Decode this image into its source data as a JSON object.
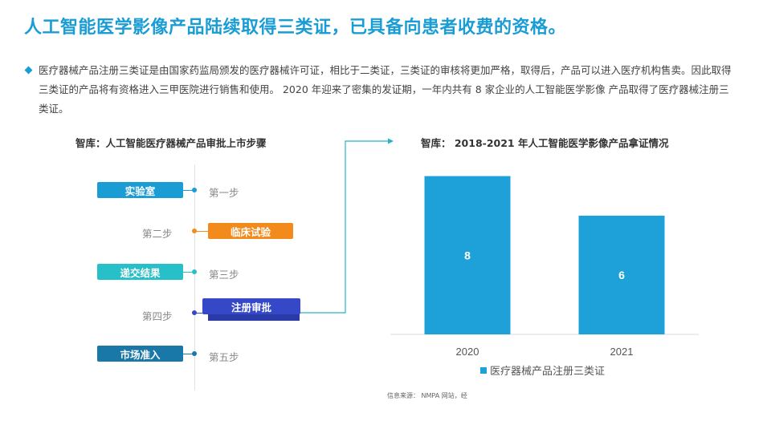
{
  "header": {
    "title": "人工智能医学影像产品陆续取得三类证，已具备向患者收费的资格。"
  },
  "intro": {
    "text": "医疗器械产品注册三类证是由国家药监局颁发的医疗器械许可证，相比于二类证，三类证的审核将更加严格，取得后，产品可以进入医疗机构售卖。因此取得三类证的产品将有资格进入三甲医院进行销售和使用。  2020 年迎来了密集的发证期，一年内共有 8 家企业的人工智能医学影像 产品取得了医疗器械注册三类证。"
  },
  "process": {
    "title": "智库：人工智能医疗器械产品审批上市步骤",
    "steps": [
      {
        "label": "第一步",
        "box": "实验室",
        "color": "#1a9cd4"
      },
      {
        "label": "第二步",
        "box": "临床试验",
        "color": "#f28a1c"
      },
      {
        "label": "第三步",
        "box": "递交结果",
        "color": "#27c0c8"
      },
      {
        "label": "第四步",
        "box": "注册审批",
        "color": "#3448c8"
      },
      {
        "label": "第五步",
        "box": "市场准入",
        "color": "#1a78a8"
      }
    ]
  },
  "chart_data": {
    "type": "bar",
    "title": "智库： 2018-2021 年人工智能医学影像产品拿证情况",
    "categories": [
      "2020",
      "2021"
    ],
    "series": [
      {
        "name": "医疗器械产品注册三类证",
        "values": [
          8,
          6
        ],
        "color": "#1da1d8"
      }
    ],
    "data_labels": true,
    "ylim": [
      0,
      9.2
    ],
    "grid": false,
    "legend": "bottom"
  },
  "footer": {
    "source": "信息来源： NMPA 网站，经"
  }
}
